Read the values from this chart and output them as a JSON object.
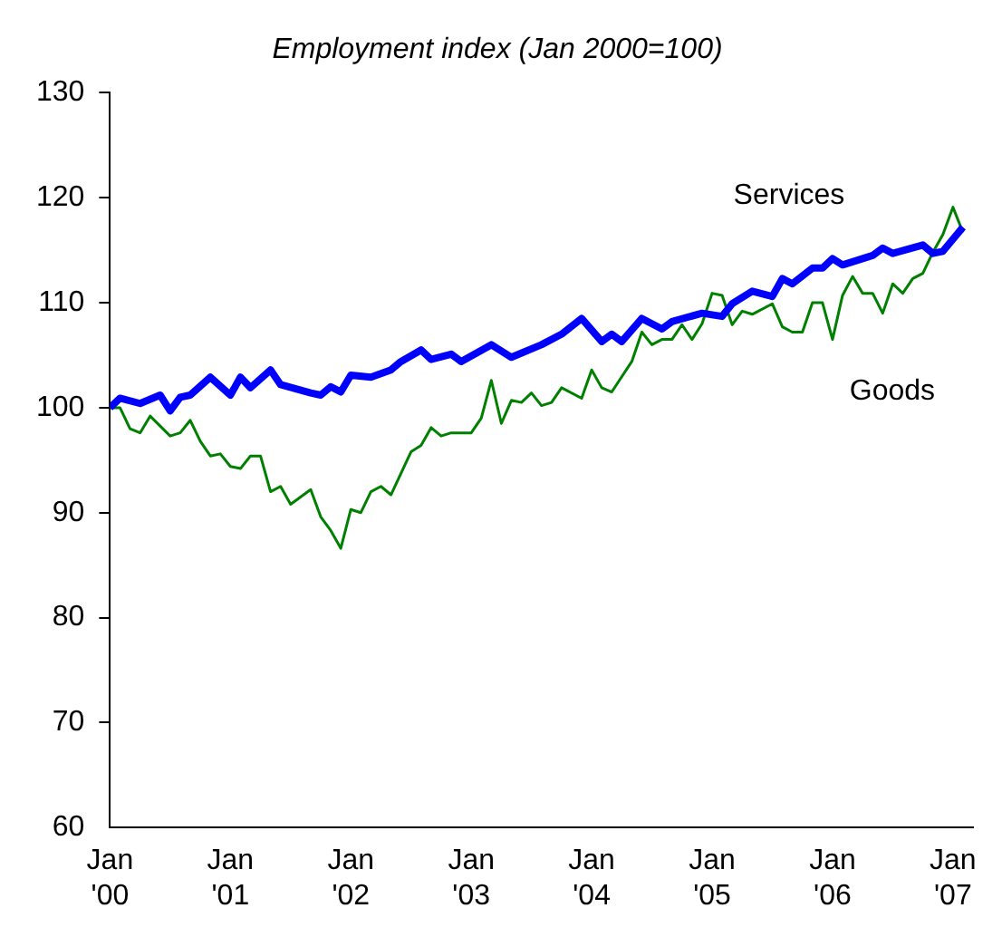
{
  "chart_data": {
    "type": "line",
    "title": "Employment index (Jan 2000=100)",
    "xlim": [
      "2000-01",
      "2007-03"
    ],
    "xticks": [
      {
        "value": "2000-01",
        "label": "Jan '00"
      },
      {
        "value": "2001-01",
        "label": "Jan '01"
      },
      {
        "value": "2002-01",
        "label": "Jan '02"
      },
      {
        "value": "2003-01",
        "label": "Jan '03"
      },
      {
        "value": "2004-01",
        "label": "Jan '04"
      },
      {
        "value": "2005-01",
        "label": "Jan '05"
      },
      {
        "value": "2006-01",
        "label": "Jan '06"
      },
      {
        "value": "2007-01",
        "label": "Jan '07"
      }
    ],
    "ylim": [
      60,
      130
    ],
    "yticks": [
      60,
      70,
      80,
      90,
      100,
      110,
      120,
      130
    ],
    "grid": false,
    "legend": false,
    "marker": "none",
    "line_style": "solid",
    "series": [
      {
        "name": "Services",
        "color": "#0000ff",
        "x": [
          "2000-01",
          "2000-02",
          "2000-04",
          "2000-06",
          "2000-07",
          "2000-08",
          "2000-09",
          "2000-11",
          "2001-01",
          "2001-02",
          "2001-03",
          "2001-05",
          "2001-06",
          "2001-09",
          "2001-10",
          "2001-11",
          "2001-12",
          "2002-01",
          "2002-03",
          "2002-05",
          "2002-06",
          "2002-08",
          "2002-09",
          "2002-11",
          "2002-12",
          "2003-03",
          "2003-05",
          "2003-08",
          "2003-10",
          "2003-12",
          "2004-02",
          "2004-03",
          "2004-04",
          "2004-06",
          "2004-08",
          "2004-09",
          "2004-12",
          "2005-02",
          "2005-03",
          "2005-05",
          "2005-07",
          "2005-08",
          "2005-09",
          "2005-11",
          "2005-12",
          "2006-01",
          "2006-02",
          "2006-05",
          "2006-06",
          "2006-07",
          "2006-10",
          "2006-11",
          "2006-12",
          "2007-02"
        ],
        "values": [
          100,
          100.9,
          100.4,
          101.2,
          99.7,
          101,
          101.2,
          102.9,
          101.2,
          102.9,
          101.9,
          103.6,
          102.2,
          101.4,
          101.2,
          102,
          101.5,
          103.1,
          102.9,
          103.6,
          104.4,
          105.5,
          104.6,
          105.1,
          104.4,
          106,
          104.8,
          106,
          107,
          108.5,
          106.3,
          107,
          106.3,
          108.5,
          107.5,
          108.2,
          109,
          108.7,
          109.9,
          111.1,
          110.6,
          112.3,
          111.8,
          113.3,
          113.3,
          114.2,
          113.6,
          114.5,
          115.2,
          114.7,
          115.5,
          114.7,
          114.9,
          117.2
        ]
      },
      {
        "name": "Goods",
        "color": "#008000",
        "x": [
          "2000-01",
          "2000-02",
          "2000-03",
          "2000-04",
          "2000-05",
          "2000-07",
          "2000-08",
          "2000-09",
          "2000-10",
          "2000-11",
          "2000-12",
          "2001-01",
          "2001-02",
          "2001-03",
          "2001-04",
          "2001-05",
          "2001-06",
          "2001-07",
          "2001-09",
          "2001-10",
          "2001-11",
          "2001-12",
          "2002-01",
          "2002-02",
          "2002-03",
          "2002-04",
          "2002-05",
          "2002-07",
          "2002-08",
          "2002-09",
          "2002-10",
          "2002-11",
          "2003-01",
          "2003-02",
          "2003-03",
          "2003-04",
          "2003-05",
          "2003-06",
          "2003-07",
          "2003-08",
          "2003-09",
          "2003-10",
          "2003-12",
          "2004-01",
          "2004-02",
          "2004-03",
          "2004-05",
          "2004-06",
          "2004-07",
          "2004-08",
          "2004-09",
          "2004-10",
          "2004-11",
          "2004-12",
          "2005-01",
          "2005-02",
          "2005-03",
          "2005-04",
          "2005-05",
          "2005-07",
          "2005-08",
          "2005-09",
          "2005-10",
          "2005-11",
          "2005-12",
          "2006-01",
          "2006-02",
          "2006-03",
          "2006-04",
          "2006-05",
          "2006-06",
          "2006-07",
          "2006-08",
          "2006-09",
          "2006-10",
          "2006-11",
          "2006-12",
          "2007-01",
          "2007-02"
        ],
        "values": [
          100,
          100,
          98,
          97.6,
          99.2,
          97.3,
          97.6,
          98.8,
          96.8,
          95.4,
          95.6,
          94.4,
          94.2,
          95.4,
          95.4,
          92,
          92.5,
          90.8,
          92.2,
          89.6,
          88.3,
          86.6,
          90.3,
          90,
          92,
          92.5,
          91.7,
          95.8,
          96.4,
          98.1,
          97.3,
          97.6,
          97.6,
          99,
          102.6,
          98.5,
          100.7,
          100.5,
          101.4,
          100.2,
          100.5,
          101.9,
          100.9,
          103.6,
          101.9,
          101.5,
          104.4,
          107.2,
          106,
          106.5,
          106.5,
          107.9,
          106.5,
          108,
          110.9,
          110.7,
          107.9,
          109.2,
          108.9,
          109.9,
          107.7,
          107.2,
          107.2,
          110,
          110,
          106.5,
          110.7,
          112.5,
          110.9,
          110.9,
          109,
          111.8,
          110.9,
          112.3,
          112.8,
          114.8,
          116.5,
          119.1,
          116.7
        ]
      }
    ]
  }
}
